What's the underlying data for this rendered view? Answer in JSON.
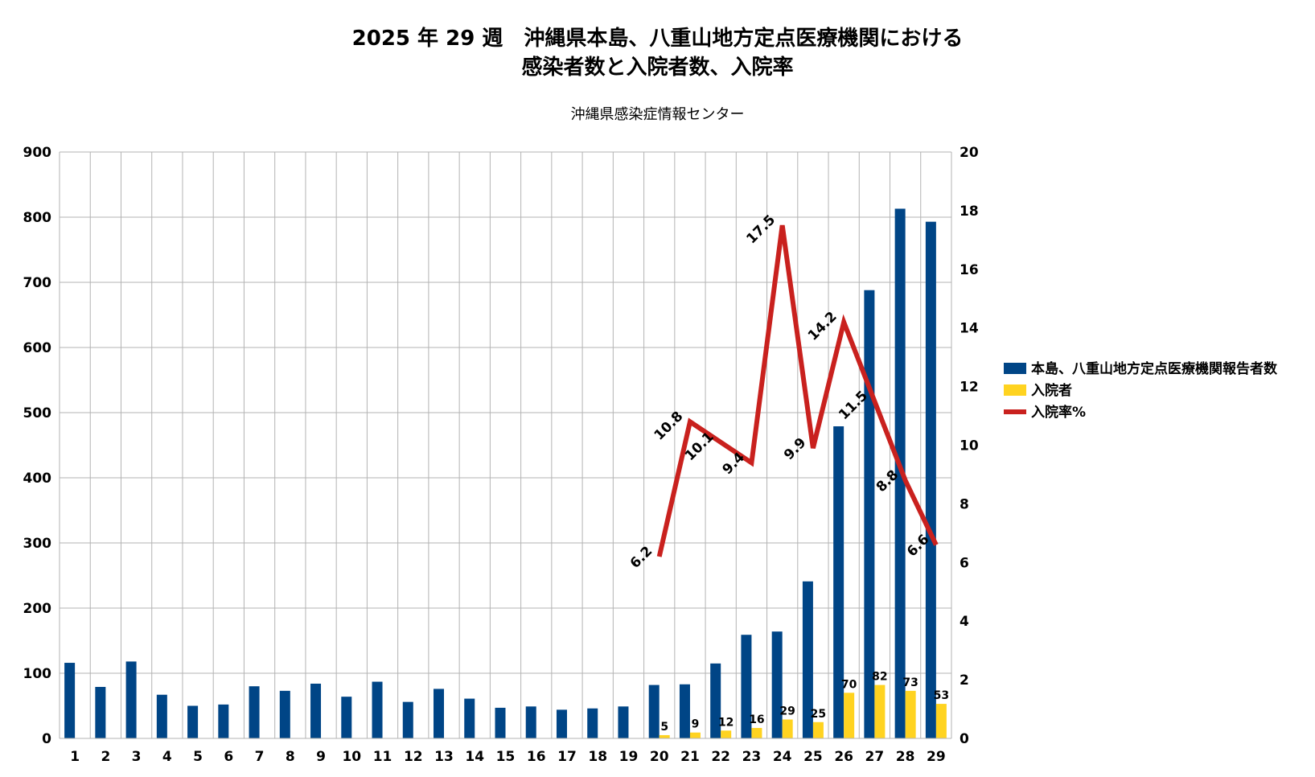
{
  "chart_data": {
    "type": "bar",
    "title_line1": "2025 年 29 週　沖縄県本島、八重山地方定点医療機関における",
    "title_line2": "感染者数と入院者数、入院率",
    "subtitle": "沖縄県感染症情報センター",
    "categories": [
      "1",
      "2",
      "3",
      "4",
      "5",
      "6",
      "7",
      "8",
      "9",
      "10",
      "11",
      "12",
      "13",
      "14",
      "15",
      "16",
      "17",
      "18",
      "19",
      "20",
      "21",
      "22",
      "23",
      "24",
      "25",
      "26",
      "27",
      "28",
      "29"
    ],
    "y_left": {
      "min": 0,
      "max": 900,
      "step": 100
    },
    "y_right": {
      "min": 0,
      "max": 20,
      "step": 2
    },
    "grid": true,
    "legend_position": "right",
    "series": [
      {
        "name": "本島、八重山地方定点医療機関報告者数",
        "kind": "bar",
        "axis": "left",
        "color": "#004586",
        "values": [
          116,
          79,
          118,
          67,
          50,
          52,
          80,
          73,
          84,
          64,
          87,
          56,
          76,
          61,
          47,
          49,
          44,
          46,
          49,
          82,
          83,
          115,
          159,
          164,
          241,
          479,
          688,
          813,
          793
        ]
      },
      {
        "name": "入院者",
        "kind": "bar",
        "axis": "left",
        "color": "#ffd320",
        "values": [
          null,
          null,
          null,
          null,
          null,
          null,
          null,
          null,
          null,
          null,
          null,
          null,
          null,
          null,
          null,
          null,
          null,
          null,
          null,
          5,
          9,
          12,
          16,
          29,
          25,
          70,
          82,
          73,
          53
        ],
        "labels": [
          "",
          "",
          "",
          "",
          "",
          "",
          "",
          "",
          "",
          "",
          "",
          "",
          "",
          "",
          "",
          "",
          "",
          "",
          "",
          "5",
          "9",
          "12",
          "16",
          "29",
          "25",
          "70",
          "82",
          "73",
          "53"
        ]
      },
      {
        "name": "入院率%",
        "kind": "line",
        "axis": "right",
        "color": "#c9211e",
        "values": [
          null,
          null,
          null,
          null,
          null,
          null,
          null,
          null,
          null,
          null,
          null,
          null,
          null,
          null,
          null,
          null,
          null,
          null,
          null,
          6.2,
          10.8,
          10.1,
          9.4,
          17.5,
          9.9,
          14.2,
          11.5,
          8.8,
          6.6
        ],
        "labels": [
          "",
          "",
          "",
          "",
          "",
          "",
          "",
          "",
          "",
          "",
          "",
          "",
          "",
          "",
          "",
          "",
          "",
          "",
          "",
          "6.2",
          "10.8",
          "10.1",
          "9.4",
          "17.5",
          "9.9",
          "14.2",
          "11.5",
          "8.8",
          "6.6"
        ]
      }
    ]
  }
}
